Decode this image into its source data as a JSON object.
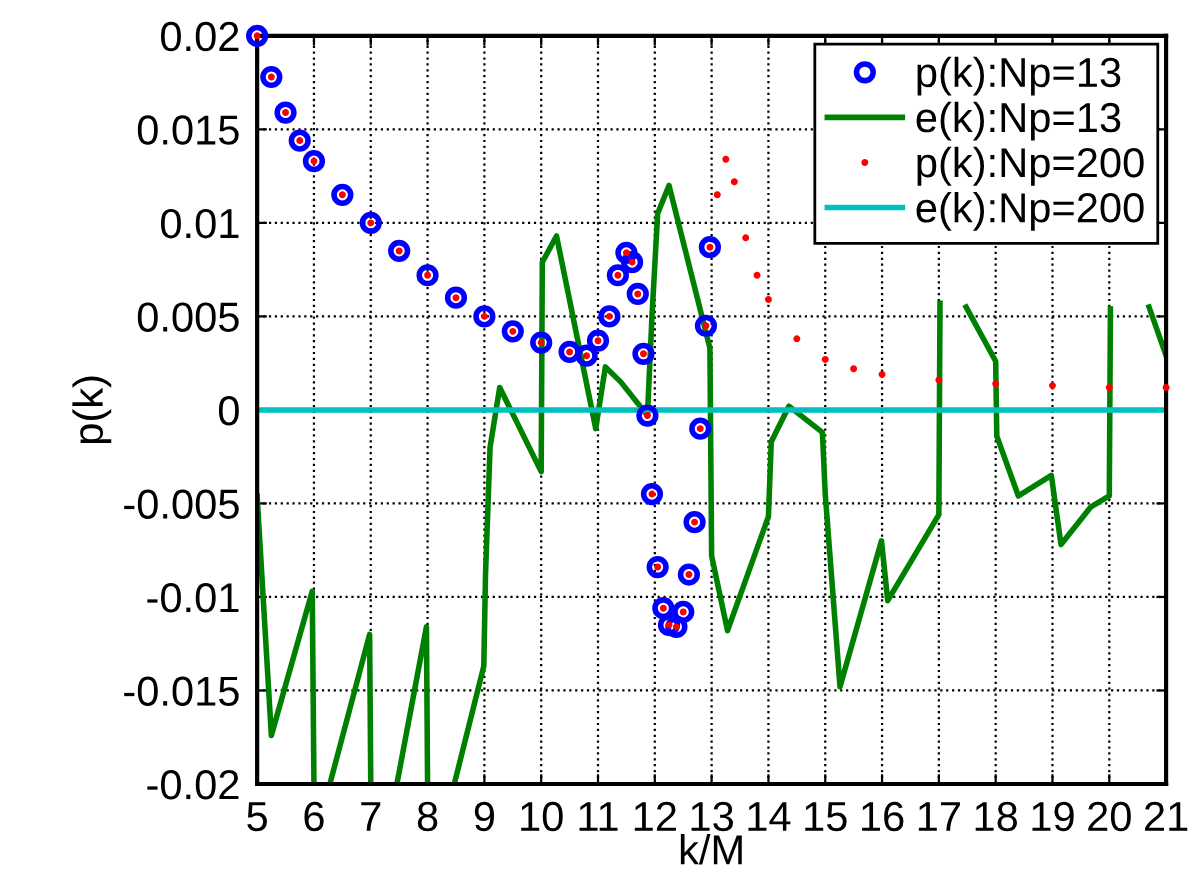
{
  "chart_data": {
    "type": "line",
    "xlabel": "k/M",
    "ylabel": "p(k)",
    "xlim": [
      5,
      21
    ],
    "ylim": [
      -0.02,
      0.02
    ],
    "xticks": [
      5,
      6,
      7,
      8,
      9,
      10,
      11,
      12,
      13,
      14,
      15,
      16,
      17,
      18,
      19,
      20,
      21
    ],
    "yticks": [
      -0.02,
      -0.015,
      -0.01,
      -0.005,
      0,
      0.005,
      0.01,
      0.015,
      0.02
    ],
    "grid": true,
    "legend": "top right",
    "series": [
      {
        "name": "p(k):Np=13",
        "type": "scatter",
        "marker": "circle",
        "color": "#0000ff",
        "x": [
          5,
          5.25,
          5.5,
          5.75,
          6,
          6.5,
          7,
          7.5,
          8,
          8.5,
          9,
          9.5,
          10,
          10.5,
          10.8,
          11,
          11.2,
          11.35,
          11.5,
          11.6,
          11.7,
          11.8,
          11.87,
          11.95,
          12.05,
          12.15,
          12.25,
          12.38,
          12.5,
          12.6,
          12.7,
          12.8,
          12.9,
          12.97
        ],
        "values": [
          0.02,
          0.0178,
          0.0159,
          0.0144,
          0.0133,
          0.0115,
          0.01,
          0.0085,
          0.0072,
          0.006,
          0.005,
          0.0042,
          0.0036,
          0.0031,
          0.0029,
          0.0037,
          0.005,
          0.0072,
          0.0084,
          0.0079,
          0.0062,
          0.003,
          -0.0003,
          -0.0045,
          -0.0084,
          -0.0106,
          -0.0115,
          -0.0116,
          -0.0108,
          -0.0088,
          -0.006,
          -0.001,
          0.0045,
          0.0087
        ]
      },
      {
        "name": "e(k):Np=13",
        "line_style": "solid",
        "color": "#008000",
        "x": [
          5,
          5.25,
          5.97,
          6.0,
          6.1,
          6.28,
          6.98,
          7.0,
          7.2,
          7.46,
          7.98,
          8.0,
          8.2,
          8.47,
          8.99,
          9.02,
          9.1,
          9.27,
          10.0,
          10.02,
          10.27,
          10.96,
          11.13,
          11.4,
          11.87,
          11.95,
          12.05,
          12.25,
          12.97,
          13.0,
          13.28,
          14.0,
          14.05,
          14.36,
          14.95,
          15.0,
          15.26,
          15.99,
          16.1,
          17.0,
          17.02,
          17.2,
          17.48,
          18.0,
          18.02,
          18.4,
          18.98,
          19.15,
          19.67,
          20.0,
          20.02,
          20.3,
          20.7,
          21
        ],
        "values": [
          -0.0046,
          -0.0174,
          -0.0097,
          -0.02,
          null,
          -0.02,
          -0.012,
          -0.02,
          null,
          -0.02,
          -0.0116,
          -0.02,
          null,
          -0.02,
          -0.0137,
          -0.0088,
          -0.002,
          0.0012,
          -0.0033,
          0.0079,
          0.0093,
          -0.001,
          0.0023,
          0.0015,
          -0.0003,
          0.005,
          0.0105,
          0.012,
          0.0033,
          -0.0078,
          -0.0118,
          -0.0057,
          -0.0017,
          0.0002,
          -0.0012,
          -0.0045,
          -0.0148,
          -0.007,
          -0.0102,
          -0.0056,
          0.0057,
          null,
          0.0055,
          0.0026,
          -0.0014,
          -0.0046,
          -0.0035,
          -0.0072,
          -0.0052,
          -0.0046,
          0.0054,
          null,
          0.0055,
          0.0029
        ]
      },
      {
        "name": "p(k):Np=200",
        "type": "scatter",
        "marker": "dot",
        "color": "#ff0000",
        "x": [
          5,
          5.25,
          5.5,
          5.75,
          6,
          6.5,
          7,
          7.5,
          8,
          8.5,
          9,
          9.5,
          10,
          10.5,
          10.8,
          11,
          11.2,
          11.35,
          11.5,
          11.6,
          11.7,
          11.8,
          11.87,
          11.95,
          12.05,
          12.15,
          12.25,
          12.38,
          12.5,
          12.6,
          12.7,
          12.8,
          12.9,
          12.97,
          13.1,
          13.25,
          13.4,
          13.6,
          13.8,
          14,
          14.5,
          15,
          15.5,
          16,
          17,
          18,
          19,
          20,
          21
        ],
        "values": [
          0.02,
          0.0178,
          0.0159,
          0.0144,
          0.0133,
          0.0115,
          0.01,
          0.0085,
          0.0072,
          0.006,
          0.005,
          0.0042,
          0.0036,
          0.0031,
          0.0029,
          0.0037,
          0.005,
          0.0072,
          0.0084,
          0.0079,
          0.0062,
          0.003,
          -0.0003,
          -0.0045,
          -0.0084,
          -0.0106,
          -0.0115,
          -0.0116,
          -0.0108,
          -0.0088,
          -0.006,
          -0.001,
          0.0045,
          0.0087,
          0.0115,
          0.0134,
          0.0122,
          0.0092,
          0.0072,
          0.0059,
          0.0038,
          0.0027,
          0.0022,
          0.0019,
          0.0016,
          0.0014,
          0.0013,
          0.0012,
          0.0012
        ]
      },
      {
        "name": "e(k):Np=200",
        "line_style": "solid",
        "color": "#00bfbf",
        "x": [
          5,
          21
        ],
        "values": [
          0,
          0
        ]
      }
    ]
  }
}
